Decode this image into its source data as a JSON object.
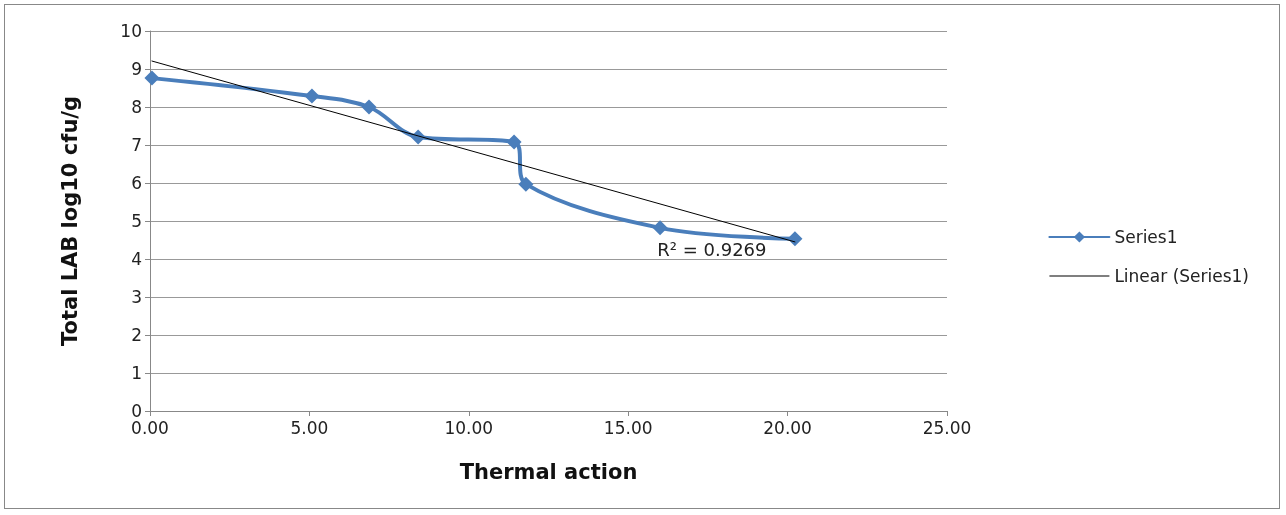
{
  "chart_data": {
    "type": "line",
    "xlabel": "Thermal action",
    "ylabel": "Total LAB log10 cfu/g",
    "series": [
      {
        "name": "Series1",
        "color": "#4a7ebb",
        "marker": "diamond",
        "x": [
          0.06,
          5.08,
          6.87,
          8.41,
          11.42,
          11.79,
          16.0,
          20.23
        ],
        "values": [
          8.76,
          8.29,
          8.0,
          7.21,
          7.08,
          5.97,
          4.82,
          4.53
        ]
      },
      {
        "name": "Linear (Series1)",
        "color": "#000000",
        "marker": "none",
        "x": [
          0.06,
          20.23
        ],
        "values": [
          9.21,
          4.45
        ]
      }
    ],
    "annotations": [
      "R² = 0.9269"
    ],
    "xlim": [
      0,
      25
    ],
    "xticks": [
      {
        "value": 0,
        "label": "0.00"
      },
      {
        "value": 5,
        "label": "5.00"
      },
      {
        "value": 10,
        "label": "10.00"
      },
      {
        "value": 15,
        "label": "15.00"
      },
      {
        "value": 20,
        "label": "20.00"
      },
      {
        "value": 25,
        "label": "25.00"
      }
    ],
    "ylim": [
      0,
      10
    ],
    "yticks": [
      0,
      1,
      2,
      3,
      4,
      5,
      6,
      7,
      8,
      9,
      10
    ],
    "grid": "y",
    "legend": "right",
    "line_style": "solid"
  }
}
